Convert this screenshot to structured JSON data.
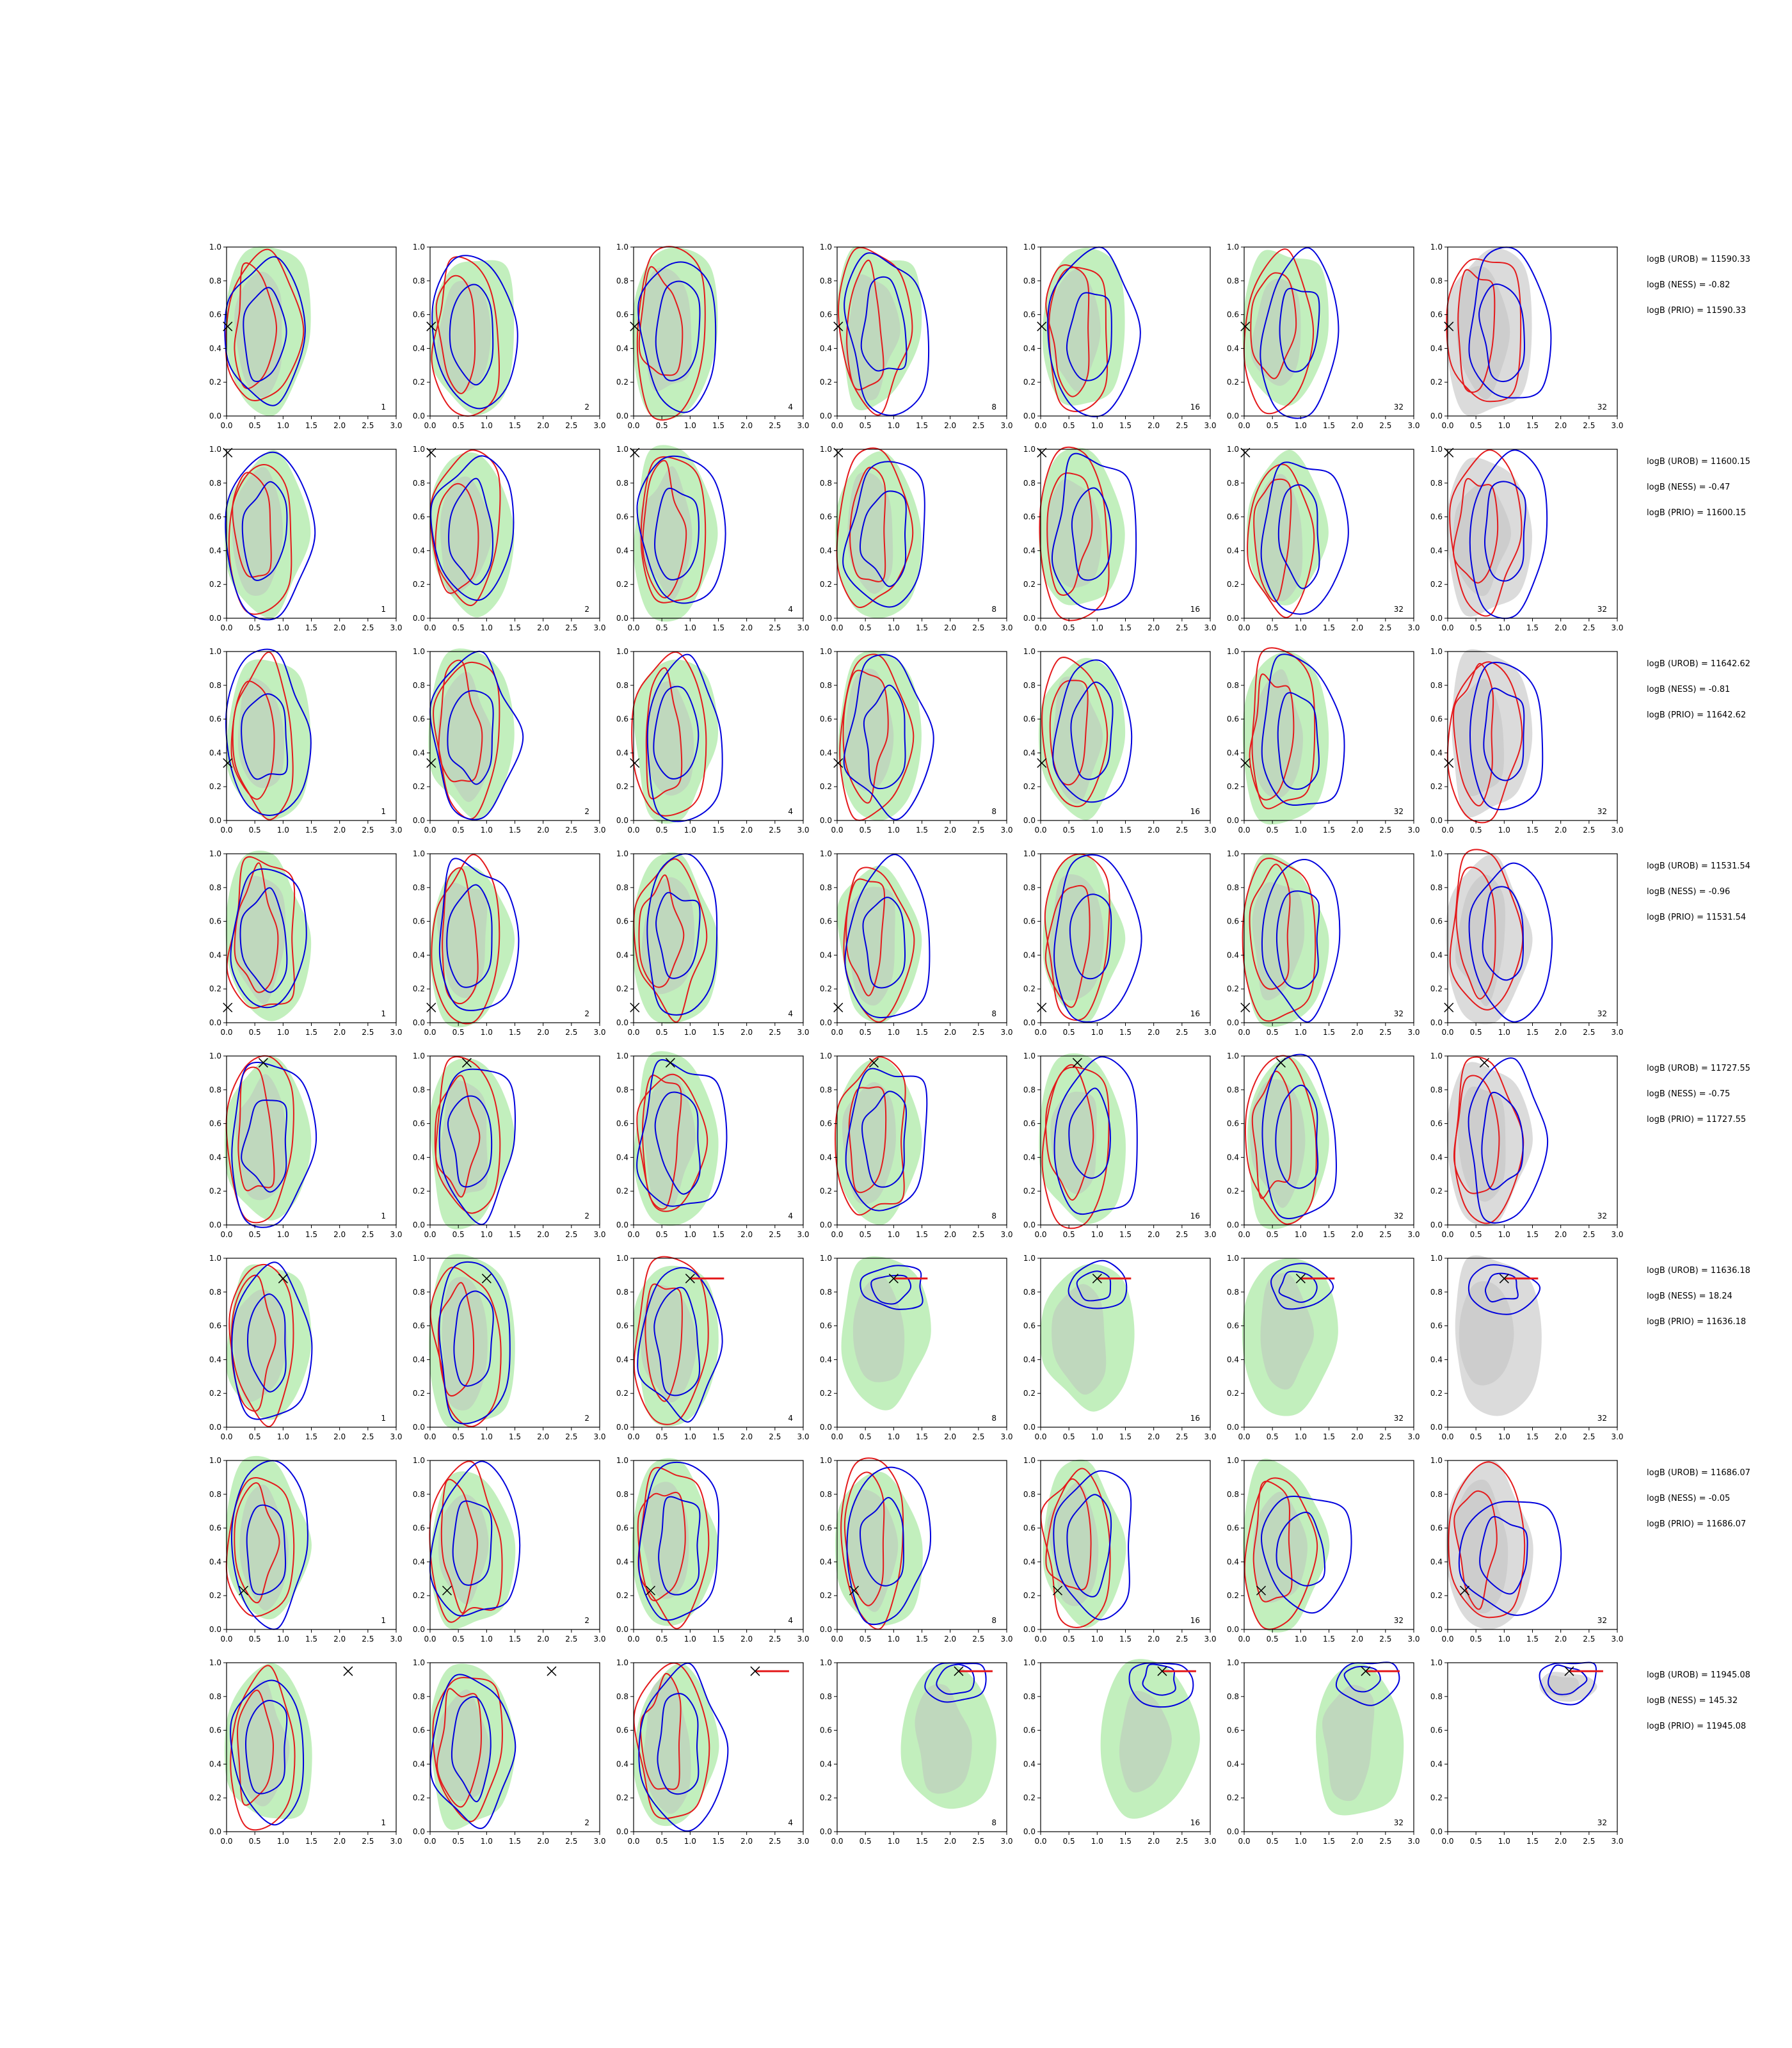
{
  "figure": {
    "rows": 8,
    "cols": 7,
    "col_labels": [
      "1",
      "2",
      "4",
      "8",
      "16",
      "32",
      "32"
    ],
    "colors": {
      "red_contour": "#e41a1c",
      "blue_contour": "#0000dd",
      "green_fill": "#b7ecb2",
      "grey_fill": "#bdbdbd",
      "marker": "#000000"
    }
  },
  "stats": [
    {
      "urob": "logB (UROB) = 11590.33",
      "ness": "logB (NESS) = -0.82",
      "prio": "logB (PRIO) = 11590.33"
    },
    {
      "urob": "logB (UROB) = 11600.15",
      "ness": "logB (NESS) = -0.47",
      "prio": "logB (PRIO) = 11600.15"
    },
    {
      "urob": "logB (UROB) = 11642.62",
      "ness": "logB (NESS) = -0.81",
      "prio": "logB (PRIO) = 11642.62"
    },
    {
      "urob": "logB (UROB) = 11531.54",
      "ness": "logB (NESS) = -0.96",
      "prio": "logB (PRIO) = 11531.54"
    },
    {
      "urob": "logB (UROB) = 11727.55",
      "ness": "logB (NESS) = -0.75",
      "prio": "logB (PRIO) = 11727.55"
    },
    {
      "urob": "logB (UROB) = 11636.18",
      "ness": "logB (NESS) = 18.24",
      "prio": "logB (PRIO) = 11636.18"
    },
    {
      "urob": "logB (UROB) = 11686.07",
      "ness": "logB (NESS) = -0.05",
      "prio": "logB (PRIO) = 11686.07"
    },
    {
      "urob": "logB (UROB) = 11945.08",
      "ness": "logB (NESS) = 145.32",
      "prio": "logB (PRIO) = 11945.08"
    }
  ],
  "chart_data": {
    "type": "contour-grid",
    "xlim": [
      0.0,
      3.0
    ],
    "ylim": [
      0.0,
      1.0
    ],
    "xticks": [
      "0.0",
      "0.5",
      "1.0",
      "1.5",
      "2.0",
      "2.5",
      "3.0"
    ],
    "yticks": [
      "0.0",
      "0.2",
      "0.4",
      "0.6",
      "0.8",
      "1.0"
    ],
    "rows": [
      {
        "marker": [
          0.02,
          0.53
        ],
        "style": "plain"
      },
      {
        "marker": [
          0.02,
          0.98
        ],
        "style": "plain"
      },
      {
        "marker": [
          0.02,
          0.34
        ],
        "style": "plain"
      },
      {
        "marker": [
          0.02,
          0.09
        ],
        "style": "plain"
      },
      {
        "marker": [
          0.65,
          0.96
        ],
        "style": "plain"
      },
      {
        "marker": [
          1.0,
          0.88
        ],
        "style": "peak"
      },
      {
        "marker": [
          0.3,
          0.23
        ],
        "style": "blob"
      },
      {
        "marker": [
          2.15,
          0.95
        ],
        "style": "peak"
      }
    ]
  }
}
